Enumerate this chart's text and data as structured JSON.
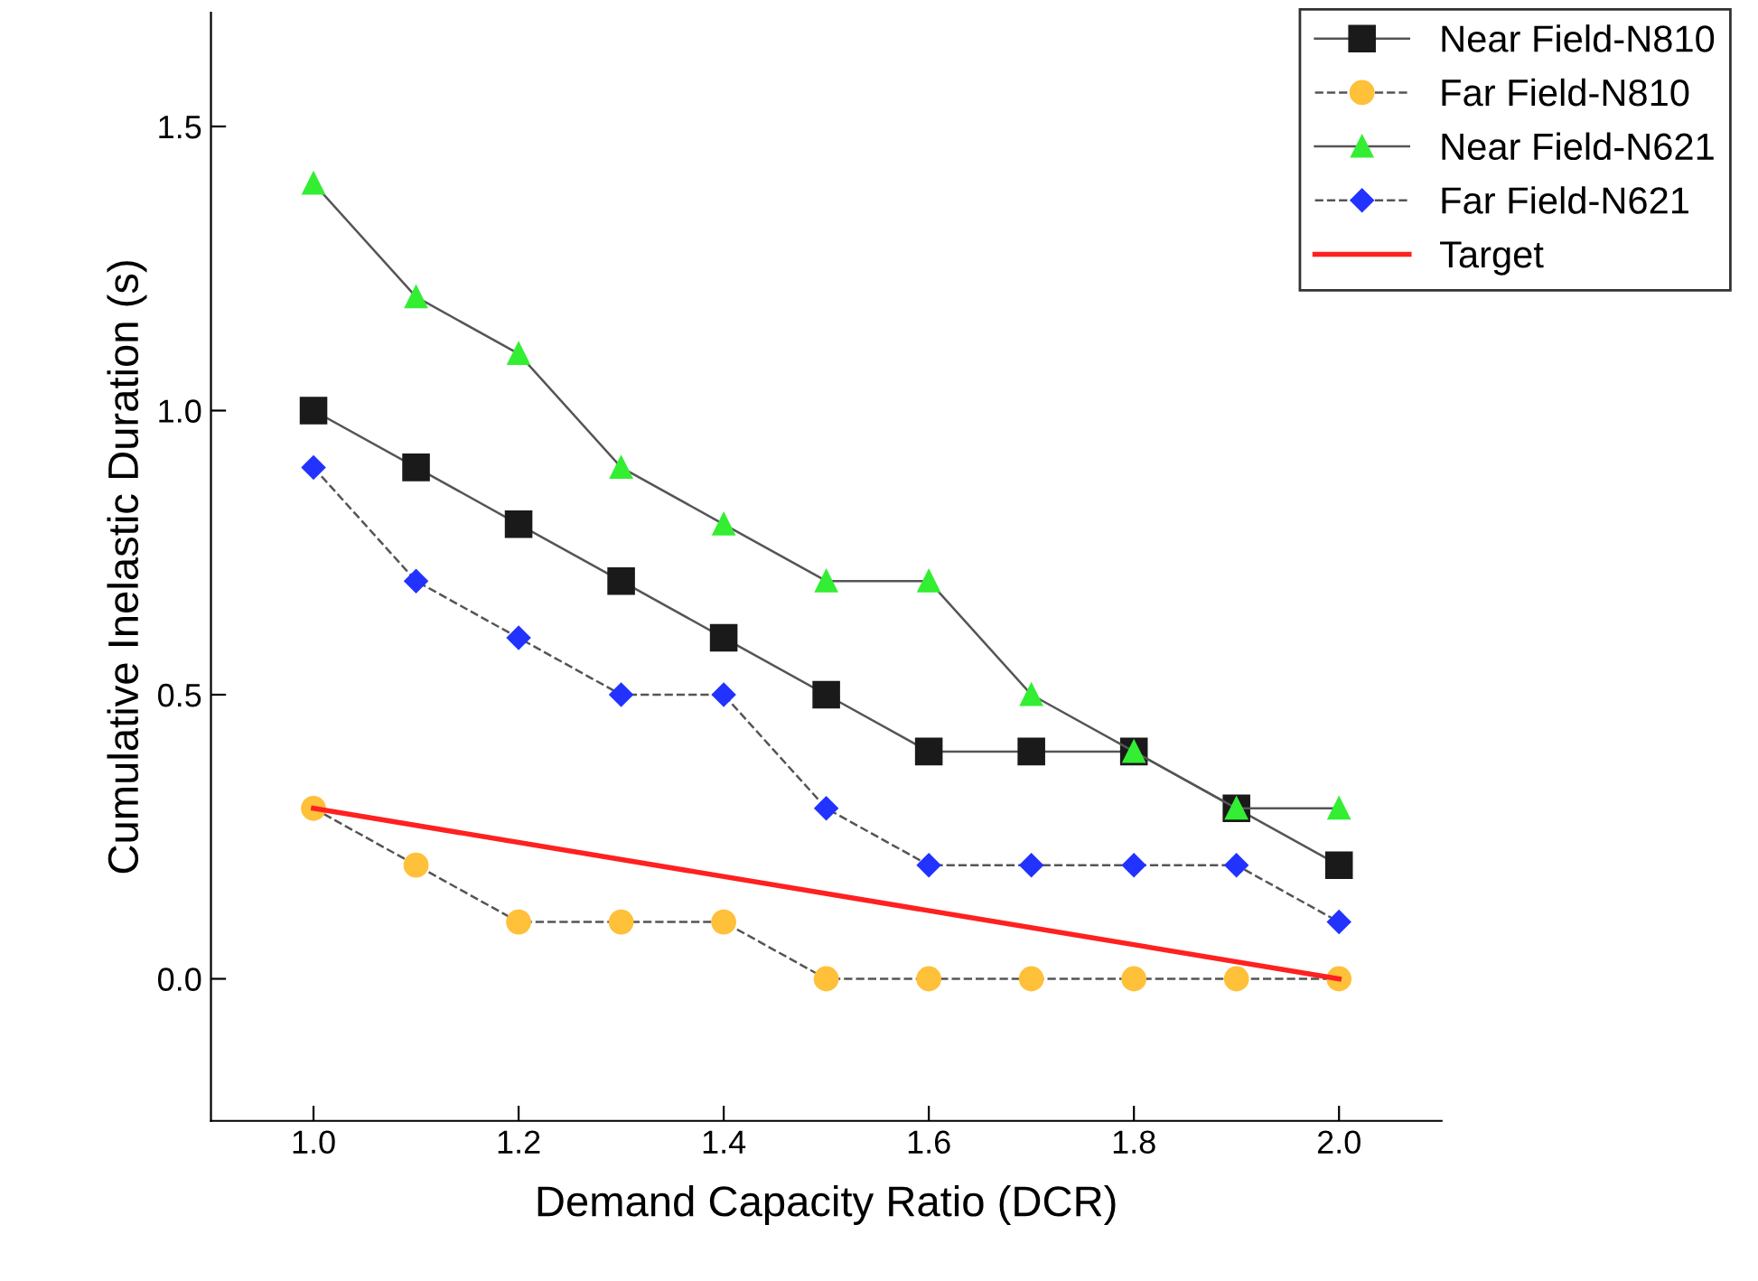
{
  "chart_data": {
    "type": "line",
    "xlabel": "Demand Capacity Ratio (DCR)",
    "ylabel": "Cumulative Inelastic Duration (s)",
    "x": [
      1.0,
      1.1,
      1.2,
      1.3,
      1.4,
      1.5,
      1.6,
      1.7,
      1.8,
      1.9,
      2.0
    ],
    "xlim": [
      0.9,
      2.1
    ],
    "xticks": [
      {
        "value": 1.0,
        "label": "1.0"
      },
      {
        "value": 1.2,
        "label": "1.2"
      },
      {
        "value": 1.4,
        "label": "1.4"
      },
      {
        "value": 1.6,
        "label": "1.6"
      },
      {
        "value": 1.8,
        "label": "1.8"
      },
      {
        "value": 2.0,
        "label": "2.0"
      }
    ],
    "ylim": [
      -0.25,
      1.7
    ],
    "yticks": [
      {
        "value": 0,
        "label": "0.0"
      },
      {
        "value": 0.5,
        "label": "0.5"
      },
      {
        "value": 1.0,
        "label": "1.0"
      },
      {
        "value": 1.5,
        "label": "1.5"
      }
    ],
    "grid": false,
    "legend": "top right",
    "series": [
      {
        "name": "Near Field-N810",
        "color": "#1a1a1a",
        "marker": "square",
        "line_style": "solid",
        "values": [
          1.0,
          0.9,
          0.8,
          0.7,
          0.6,
          0.5,
          0.4,
          0.4,
          0.4,
          0.3,
          0.2
        ]
      },
      {
        "name": "Far Field-N810",
        "color": "#ffc03a",
        "marker": "circle",
        "line_style": "dashed",
        "values": [
          0.3,
          0.2,
          0.1,
          0.1,
          0.1,
          0,
          0,
          0,
          0,
          0,
          0
        ]
      },
      {
        "name": "Near Field-N621",
        "color": "#33ee33",
        "marker": "triangle",
        "line_style": "solid",
        "values": [
          1.4,
          1.2,
          1.1,
          0.9,
          0.8,
          0.7,
          0.7,
          0.5,
          0.4,
          0.3,
          0.3
        ]
      },
      {
        "name": "Far Field-N621",
        "color": "#2233ff",
        "marker": "diamond",
        "line_style": "dashed",
        "values": [
          0.9,
          0.7,
          0.6,
          0.5,
          0.5,
          0.3,
          0.2,
          0.2,
          0.2,
          0.2,
          0.1
        ]
      },
      {
        "name": "Target",
        "color": "#ff2020",
        "marker": "none",
        "line_style": "solid",
        "x": [
          1.0,
          2.0
        ],
        "values": [
          0.3,
          0
        ]
      }
    ]
  }
}
